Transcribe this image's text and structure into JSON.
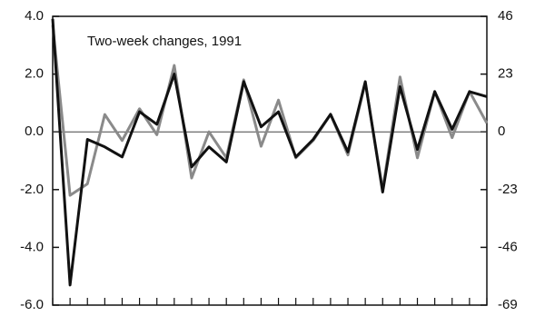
{
  "chart_data": {
    "type": "line",
    "annotation": "Two-week changes, 1991",
    "categories": [
      null,
      null,
      null,
      null,
      null,
      null,
      null,
      null,
      null,
      null,
      null,
      null,
      null,
      null,
      null,
      null,
      null,
      null,
      null,
      null,
      null,
      null,
      null,
      null,
      null,
      null
    ],
    "series": [
      {
        "color": "#8a8a8a",
        "values": [
          3.7,
          -2.2,
          -1.8,
          0.6,
          -0.3,
          0.8,
          -0.1,
          2.3,
          -1.6,
          0.0,
          -0.9,
          1.8,
          -0.5,
          1.1,
          -0.9,
          -0.3,
          0.6,
          -0.8,
          1.7,
          -2.0,
          1.9,
          -0.9,
          1.4,
          -0.2,
          1.4,
          0.3
        ]
      },
      {
        "color": "#111111",
        "axis": "y2",
        "values": [
          45,
          -61,
          -3,
          -6,
          -10,
          8,
          3,
          23,
          -14,
          -6,
          -12,
          20,
          2,
          8,
          -10,
          -3,
          7,
          -8,
          20,
          -24,
          18,
          -7,
          16,
          1,
          16,
          14
        ]
      }
    ],
    "ylim": [
      -6,
      4
    ],
    "yticks": [
      {
        "value": 4,
        "label": "4.0"
      },
      {
        "value": 2,
        "label": "2.0"
      },
      {
        "value": 0,
        "label": "0.0"
      },
      {
        "value": -2,
        "label": "-2.0"
      },
      {
        "value": -4,
        "label": "-4.0"
      },
      {
        "value": -6,
        "label": "-6.0"
      }
    ],
    "y2lim": [
      -69,
      46
    ],
    "y2ticks": [
      46,
      23,
      0,
      -23,
      -46,
      -69
    ]
  }
}
